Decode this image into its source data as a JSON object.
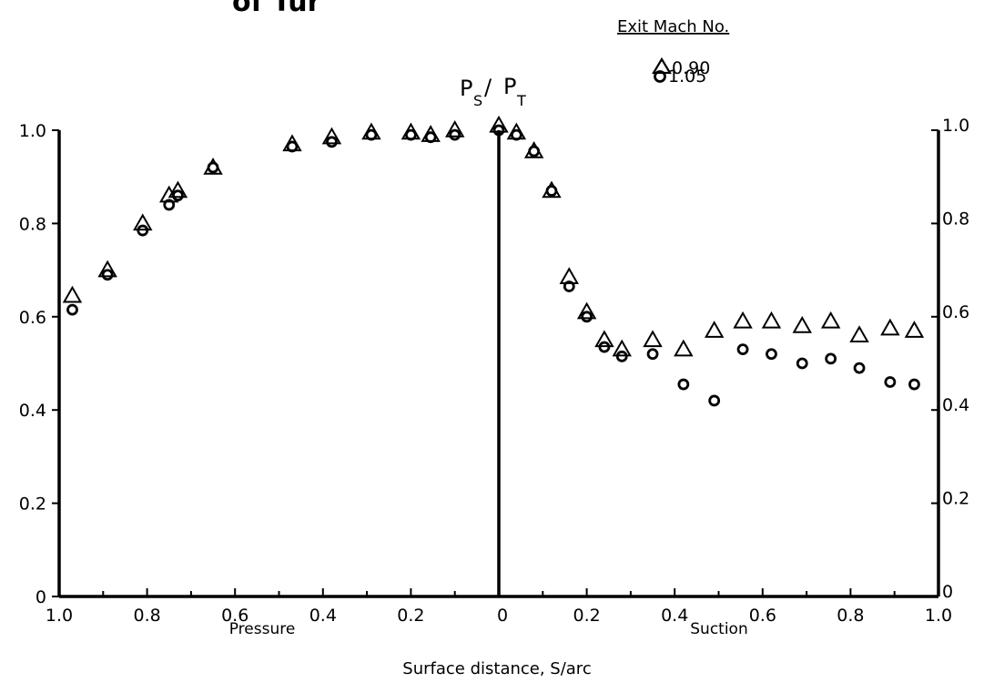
{
  "page_title_fragment": "of Tur",
  "chart_data": {
    "type": "scatter",
    "ylabel_main": "P",
    "ylabel_sub_s": "S",
    "ylabel_slash": "/",
    "ylabel_main2": "P",
    "ylabel_sub_t": "T",
    "xlabel": "Surface distance, S/arc",
    "left_section_label": "Pressure",
    "right_section_label": "Suction",
    "legend_title": "Exit Mach No.",
    "legend_placement": "top-right",
    "grid": false,
    "ylim": [
      0,
      1.0
    ],
    "left_x_range": [
      1.0,
      0
    ],
    "right_x_range": [
      0,
      1.0
    ],
    "x_ticks_left": [
      "1.0",
      "0.8",
      "0.6",
      "0.4",
      "0.2"
    ],
    "x_tick_zero": "0",
    "x_ticks_right": [
      "0.2",
      "0.4",
      "0.6",
      "0.8",
      "1.0"
    ],
    "y_ticks_left": [
      "0",
      "0.2",
      "0.4",
      "0.6",
      "0.8",
      "1.0"
    ],
    "y_ticks_right": [
      "0",
      "0.2",
      "0.4",
      "0.6",
      "0.8",
      "1.0"
    ],
    "series": [
      {
        "name": "0.90",
        "marker": "triangle",
        "pressure": [
          [
            0.97,
            0.645
          ],
          [
            0.89,
            0.7
          ],
          [
            0.81,
            0.8
          ],
          [
            0.75,
            0.86
          ],
          [
            0.73,
            0.87
          ],
          [
            0.65,
            0.92
          ],
          [
            0.47,
            0.97
          ],
          [
            0.38,
            0.985
          ],
          [
            0.29,
            0.995
          ],
          [
            0.2,
            0.995
          ],
          [
            0.155,
            0.99
          ],
          [
            0.1,
            1.0
          ],
          [
            0.0,
            1.01
          ]
        ],
        "suction": [
          [
            0.04,
            0.995
          ],
          [
            0.08,
            0.955
          ],
          [
            0.12,
            0.87
          ],
          [
            0.16,
            0.685
          ],
          [
            0.2,
            0.61
          ],
          [
            0.24,
            0.55
          ],
          [
            0.28,
            0.53
          ],
          [
            0.35,
            0.55
          ],
          [
            0.42,
            0.53
          ],
          [
            0.49,
            0.57
          ],
          [
            0.555,
            0.59
          ],
          [
            0.62,
            0.59
          ],
          [
            0.69,
            0.58
          ],
          [
            0.755,
            0.59
          ],
          [
            0.82,
            0.56
          ],
          [
            0.89,
            0.575
          ],
          [
            0.945,
            0.57
          ]
        ]
      },
      {
        "name": "1.05",
        "marker": "circle",
        "pressure": [
          [
            0.97,
            0.615
          ],
          [
            0.89,
            0.69
          ],
          [
            0.81,
            0.785
          ],
          [
            0.75,
            0.84
          ],
          [
            0.73,
            0.86
          ],
          [
            0.65,
            0.92
          ],
          [
            0.47,
            0.965
          ],
          [
            0.38,
            0.975
          ],
          [
            0.29,
            0.99
          ],
          [
            0.2,
            0.99
          ],
          [
            0.155,
            0.985
          ],
          [
            0.1,
            0.99
          ],
          [
            0.0,
            1.0
          ]
        ],
        "suction": [
          [
            0.04,
            0.99
          ],
          [
            0.08,
            0.955
          ],
          [
            0.12,
            0.87
          ],
          [
            0.16,
            0.665
          ],
          [
            0.2,
            0.6
          ],
          [
            0.24,
            0.535
          ],
          [
            0.28,
            0.515
          ],
          [
            0.35,
            0.52
          ],
          [
            0.42,
            0.455
          ],
          [
            0.49,
            0.42
          ],
          [
            0.555,
            0.53
          ],
          [
            0.62,
            0.52
          ],
          [
            0.69,
            0.5
          ],
          [
            0.755,
            0.51
          ],
          [
            0.82,
            0.49
          ],
          [
            0.89,
            0.46
          ],
          [
            0.945,
            0.455
          ]
        ]
      }
    ]
  }
}
